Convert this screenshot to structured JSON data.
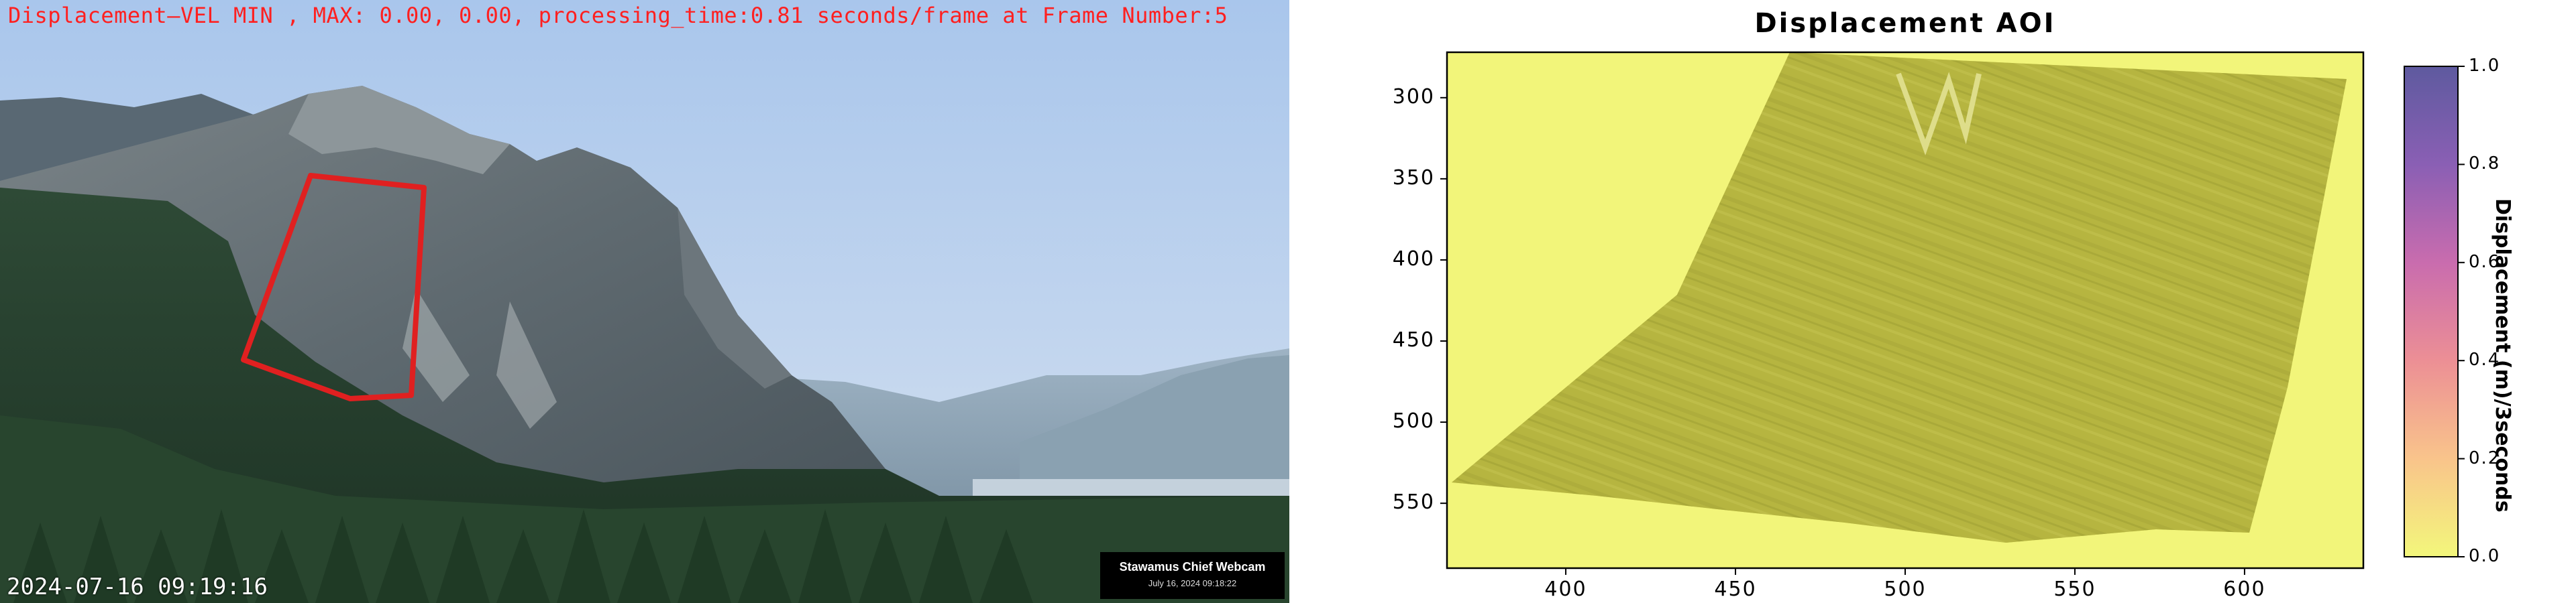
{
  "webcam": {
    "overlay_text": "Displacement—VEL MIN , MAX: 0.00, 0.00, processing_time:0.81 seconds/frame at Frame Number:5",
    "timestamp": "2024-07-16 09:19:16",
    "camera_name": "Stawamus Chief Webcam",
    "camera_date": "July 16, 2024 09:18:22",
    "aoi_color": "#e02020"
  },
  "chart_data": {
    "type": "heatmap",
    "title": "Displacement AOI",
    "xlabel": "",
    "ylabel": "",
    "x_ticks": [
      "400",
      "450",
      "500",
      "550",
      "600"
    ],
    "y_ticks": [
      "300",
      "350",
      "400",
      "450",
      "500",
      "550"
    ],
    "xlim": [
      365,
      635
    ],
    "ylim": [
      272,
      590
    ],
    "y_inverted": true,
    "colorbar": {
      "label": "Displacement (m)/3seconds",
      "ticks": [
        "0.0",
        "0.2",
        "0.4",
        "0.6",
        "0.8",
        "1.0"
      ],
      "range": [
        0,
        1
      ],
      "colors": [
        "#f3f77b",
        "#f9c48b",
        "#ec8f95",
        "#c96cae",
        "#8a5fb4",
        "#5e5a9f"
      ]
    },
    "values_min": 0.0,
    "values_max": 0.0,
    "background_color": "#f2f57a",
    "texture_color": "#b5b43e"
  }
}
